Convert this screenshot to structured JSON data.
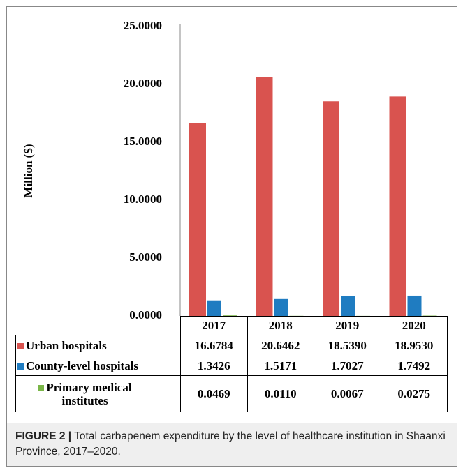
{
  "chart_data": {
    "type": "bar",
    "y_label": "Million ($)",
    "categories": [
      "2017",
      "2018",
      "2019",
      "2020"
    ],
    "series": [
      {
        "name": "Urban hospitals",
        "color": "#d9534f",
        "values": [
          16.6784,
          20.6462,
          18.539,
          18.953
        ],
        "value_labels": [
          "16.6784",
          "20.6462",
          "18.5390",
          "18.9530"
        ]
      },
      {
        "name": "County-level hospitals",
        "color": "#1f7cc1",
        "values": [
          1.3426,
          1.5171,
          1.7027,
          1.7492
        ],
        "value_labels": [
          "1.3426",
          "1.5171",
          "1.7027",
          "1.7492"
        ]
      },
      {
        "name": "Primary medical institutes",
        "color": "#7ab648",
        "values": [
          0.0469,
          0.011,
          0.0067,
          0.0275
        ],
        "value_labels": [
          "0.0469",
          "0.0110",
          "0.0067",
          "0.0275"
        ]
      }
    ],
    "ylim": [
      0,
      25
    ],
    "yticks": [
      {
        "value": 0,
        "label": "0.0000"
      },
      {
        "value": 5,
        "label": "5.0000"
      },
      {
        "value": 10,
        "label": "10.0000"
      },
      {
        "value": 15,
        "label": "15.0000"
      },
      {
        "value": 20,
        "label": "20.0000"
      },
      {
        "value": 25,
        "label": "25.0000"
      }
    ]
  },
  "caption": {
    "label": "FIGURE 2 |",
    "text": "Total carbapenem expenditure by the level of healthcare institution in Shaanxi Province, 2017–2020."
  }
}
